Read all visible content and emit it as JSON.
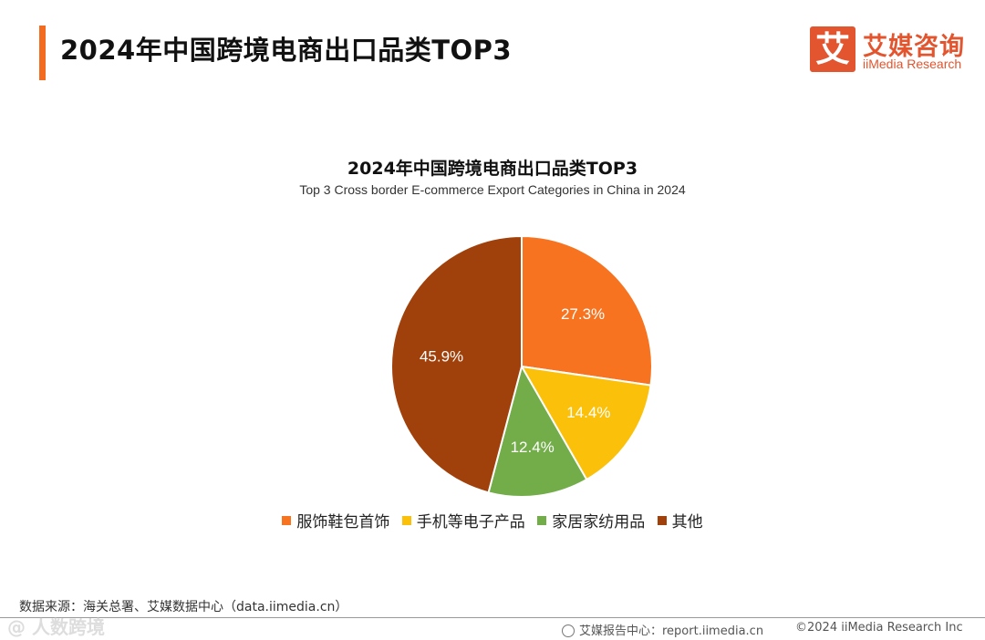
{
  "header": {
    "title": "2024年中国跨境电商出口品类TOP3",
    "logo": {
      "mark": "艾",
      "name_cn": "艾媒咨询",
      "name_en": "iiMedia Research"
    }
  },
  "chart_data": {
    "type": "pie",
    "title": "2024年中国跨境电商出口品类TOP3",
    "subtitle": "Top 3 Cross border E-commerce Export Categories in China in 2024",
    "categories": [
      "服饰鞋包首饰",
      "手机等电子产品",
      "家居家纺用品",
      "其他"
    ],
    "values": [
      27.3,
      14.4,
      12.4,
      45.9
    ],
    "labels": [
      "27.3%",
      "14.4%",
      "12.4%",
      "45.9%"
    ],
    "colors": [
      "#f7731f",
      "#fbc10a",
      "#72ad4a",
      "#a0400a"
    ],
    "legend": "bottom"
  },
  "footer": {
    "source": "数据来源：海关总署、艾媒数据中心（data.iimedia.cn）",
    "watermark": "@ 人数跨境",
    "report_center": "艾媒报告中心：report.iimedia.cn",
    "copyright": "©2024  iiMedia Research  Inc"
  }
}
